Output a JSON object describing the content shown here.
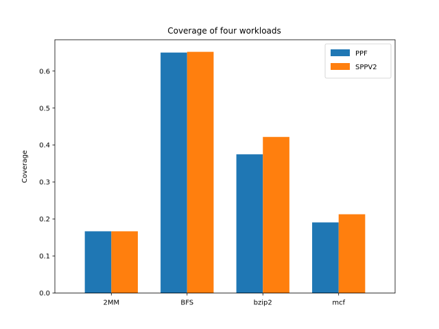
{
  "chart_data": {
    "type": "bar",
    "title": "Coverage of four workloads",
    "xlabel": "",
    "ylabel": "Coverage",
    "categories": [
      "2MM",
      "BFS",
      "bzip2",
      "mcf"
    ],
    "series": [
      {
        "name": "PPF",
        "color": "#1f77b4",
        "values": [
          0.167,
          0.65,
          0.375,
          0.191
        ]
      },
      {
        "name": "SPPV2",
        "color": "#ff7f0e",
        "values": [
          0.167,
          0.652,
          0.422,
          0.213
        ]
      }
    ],
    "ylim": [
      0,
      0.6846
    ],
    "yticks": [
      "0.0",
      "0.1",
      "0.2",
      "0.3",
      "0.4",
      "0.5",
      "0.6"
    ],
    "grid": false,
    "legend_position": "top-right"
  }
}
